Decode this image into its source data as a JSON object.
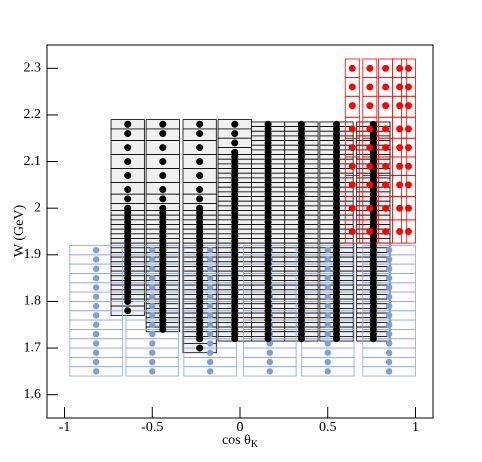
{
  "chart_data": {
    "type": "scatter",
    "y_label": "W (GeV)",
    "x_label": "cos θ",
    "x_label_subscript": "K",
    "xlim": [
      -1.1,
      1.1
    ],
    "ylim": [
      1.55,
      2.35
    ],
    "xticks": [
      -1,
      -0.5,
      0,
      0.5,
      1
    ],
    "yticks": [
      1.6,
      1.7,
      1.8,
      1.9,
      2,
      2.1,
      2.2,
      2.3
    ],
    "series": [
      {
        "color": "#000000",
        "box_color": "#000000",
        "box_fill": "#f0f0f0",
        "bin_width": 0.19,
        "columns": [
          {
            "x": -0.64,
            "y": [
              2.18,
              2.16,
              2.13,
              2.1,
              2.07,
              2.04,
              2.02,
              2,
              1.99,
              1.98,
              1.97,
              1.96,
              1.95,
              1.94,
              1.93,
              1.92,
              1.91,
              1.9,
              1.89,
              1.88,
              1.87,
              1.86,
              1.85,
              1.84,
              1.83,
              1.82,
              1.81,
              1.8,
              1.78
            ]
          },
          {
            "x": -0.44,
            "y": [
              2.18,
              2.16,
              2.13,
              2.1,
              2.07,
              2.04,
              2.02,
              2,
              1.99,
              1.98,
              1.97,
              1.96,
              1.95,
              1.94,
              1.93,
              1.92,
              1.91,
              1.9,
              1.89,
              1.88,
              1.87,
              1.86,
              1.85,
              1.84,
              1.83,
              1.82,
              1.81,
              1.8,
              1.79,
              1.78,
              1.77,
              1.76,
              1.75,
              1.74
            ]
          },
          {
            "x": -0.23,
            "y": [
              2.18,
              2.16,
              2.13,
              2.1,
              2.07,
              2.04,
              2.02,
              2,
              1.99,
              1.98,
              1.97,
              1.96,
              1.95,
              1.94,
              1.93,
              1.92,
              1.91,
              1.9,
              1.89,
              1.88,
              1.87,
              1.86,
              1.85,
              1.84,
              1.83,
              1.82,
              1.81,
              1.8,
              1.79,
              1.78,
              1.77,
              1.76,
              1.75,
              1.74,
              1.73,
              1.72,
              1.7
            ]
          },
          {
            "x": -0.03,
            "y": [
              2.18,
              2.16,
              2.14,
              2.12,
              2.11,
              2.1,
              2.09,
              2.08,
              2.07,
              2.06,
              2.05,
              2.04,
              2.03,
              2.02,
              2.01,
              2,
              1.99,
              1.98,
              1.97,
              1.96,
              1.95,
              1.94,
              1.93,
              1.92,
              1.91,
              1.9,
              1.89,
              1.88,
              1.87,
              1.86,
              1.85,
              1.84,
              1.83,
              1.82,
              1.81,
              1.8,
              1.79,
              1.78,
              1.77,
              1.76,
              1.75,
              1.74,
              1.73,
              1.72
            ]
          },
          {
            "x": 0.16,
            "y": [
              2.18,
              2.17,
              2.16,
              2.15,
              2.14,
              2.13,
              2.12,
              2.11,
              2.1,
              2.09,
              2.08,
              2.07,
              2.06,
              2.05,
              2.04,
              2.03,
              2.02,
              2.01,
              2,
              1.99,
              1.98,
              1.97,
              1.96,
              1.95,
              1.94,
              1.93,
              1.92,
              1.91,
              1.9,
              1.89,
              1.88,
              1.87,
              1.86,
              1.85,
              1.84,
              1.83,
              1.82,
              1.81,
              1.8,
              1.79,
              1.78,
              1.77,
              1.76,
              1.75,
              1.74,
              1.73,
              1.72
            ]
          },
          {
            "x": 0.35,
            "y": [
              2.18,
              2.17,
              2.16,
              2.15,
              2.14,
              2.13,
              2.12,
              2.11,
              2.1,
              2.09,
              2.08,
              2.07,
              2.06,
              2.05,
              2.04,
              2.03,
              2.02,
              2.01,
              2,
              1.99,
              1.98,
              1.97,
              1.96,
              1.95,
              1.94,
              1.93,
              1.92,
              1.91,
              1.9,
              1.89,
              1.88,
              1.87,
              1.86,
              1.85,
              1.84,
              1.83,
              1.82,
              1.81,
              1.8,
              1.79,
              1.78,
              1.77,
              1.76,
              1.75,
              1.74,
              1.73,
              1.72
            ]
          },
          {
            "x": 0.55,
            "y": [
              2.18,
              2.17,
              2.16,
              2.15,
              2.14,
              2.13,
              2.12,
              2.11,
              2.1,
              2.09,
              2.08,
              2.07,
              2.06,
              2.05,
              2.04,
              2.03,
              2.02,
              2.01,
              2,
              1.99,
              1.98,
              1.97,
              1.96,
              1.95,
              1.94,
              1.93,
              1.92,
              1.91,
              1.9,
              1.89,
              1.88,
              1.87,
              1.86,
              1.85,
              1.84,
              1.83,
              1.82,
              1.81,
              1.8,
              1.79,
              1.78,
              1.77,
              1.76,
              1.75,
              1.74,
              1.73,
              1.72
            ]
          },
          {
            "x": 0.76,
            "y": [
              2.18,
              2.17,
              2.16,
              2.15,
              2.14,
              2.13,
              2.12,
              2.11,
              2.1,
              2.09,
              2.08,
              2.07,
              2.06,
              2.05,
              2.04,
              2.03,
              2.02,
              2.01,
              2,
              1.99,
              1.98,
              1.97,
              1.96,
              1.95,
              1.94,
              1.93,
              1.92,
              1.91,
              1.9,
              1.89,
              1.88,
              1.87,
              1.86,
              1.85,
              1.84,
              1.83,
              1.82,
              1.81,
              1.8,
              1.79,
              1.78,
              1.77,
              1.76,
              1.75,
              1.74,
              1.73,
              1.72
            ]
          }
        ]
      },
      {
        "color": "#7f9fd6",
        "box_color": "#8ea8dd",
        "box_fill": "none",
        "bin_width": 0.3,
        "columns": [
          {
            "x": -0.82,
            "y": [
              1.91,
              1.89,
              1.87,
              1.85,
              1.83,
              1.81,
              1.79,
              1.77,
              1.75,
              1.73,
              1.71,
              1.69,
              1.67,
              1.65
            ]
          },
          {
            "x": -0.5,
            "y": [
              1.91,
              1.89,
              1.87,
              1.85,
              1.83,
              1.81,
              1.79,
              1.77,
              1.75,
              1.73,
              1.71,
              1.69,
              1.67,
              1.65
            ]
          },
          {
            "x": -0.17,
            "y": [
              1.91,
              1.89,
              1.87,
              1.85,
              1.83,
              1.81,
              1.79,
              1.77,
              1.75,
              1.73,
              1.71,
              1.69,
              1.67,
              1.65
            ]
          },
          {
            "x": 0.17,
            "y": [
              1.91,
              1.89,
              1.87,
              1.85,
              1.83,
              1.81,
              1.79,
              1.77,
              1.75,
              1.73,
              1.71,
              1.69,
              1.67,
              1.65
            ]
          },
          {
            "x": 0.5,
            "y": [
              1.91,
              1.89,
              1.87,
              1.85,
              1.83,
              1.81,
              1.79,
              1.77,
              1.75,
              1.73,
              1.71,
              1.69,
              1.67,
              1.65
            ]
          },
          {
            "x": 0.85,
            "y": [
              1.91,
              1.89,
              1.87,
              1.85,
              1.83,
              1.81,
              1.79,
              1.77,
              1.75,
              1.73,
              1.71,
              1.69,
              1.67,
              1.65
            ]
          }
        ]
      },
      {
        "color": "#ff0000",
        "box_color": "#ff0000",
        "box_fill": "none",
        "bin_width": 0.08,
        "columns": [
          {
            "x": 0.64,
            "y": [
              2.3,
              2.26,
              2.22,
              2.17,
              2.13,
              2.09,
              2.05,
              2,
              1.95
            ]
          },
          {
            "x": 0.74,
            "y": [
              2.3,
              2.26,
              2.22,
              2.17,
              2.13,
              2.09,
              2.05,
              2,
              1.95
            ]
          },
          {
            "x": 0.83,
            "y": [
              2.3,
              2.26,
              2.22,
              2.17,
              2.13,
              2.09,
              2.05,
              2,
              1.95
            ]
          },
          {
            "x": 0.91,
            "y": [
              2.3,
              2.26,
              2.22,
              2.17,
              2.13,
              2.09,
              2.05,
              2,
              1.95
            ]
          },
          {
            "x": 0.96,
            "y": [
              2.3,
              2.26,
              2.22,
              2.17,
              2.13,
              2.09,
              2.05,
              2,
              1.95
            ]
          }
        ]
      }
    ]
  }
}
